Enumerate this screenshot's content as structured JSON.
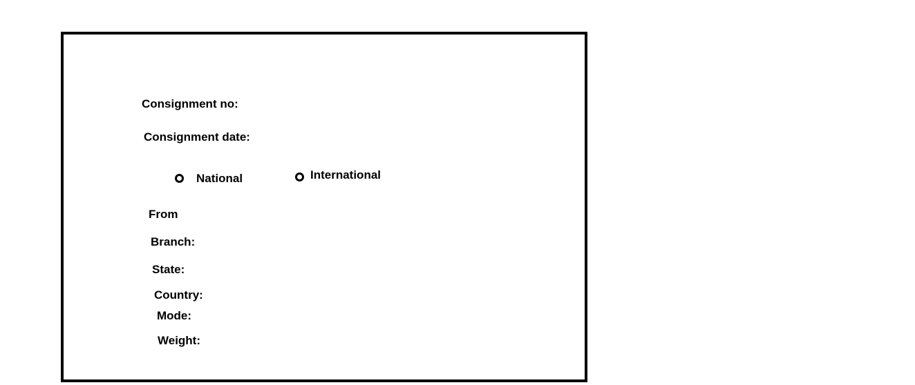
{
  "form": {
    "consignment_no_label": "Consignment no:",
    "consignment_date_label": "Consignment date:",
    "type_options": [
      {
        "label": "National"
      },
      {
        "label": "International"
      }
    ],
    "from_label": "From",
    "branch_label": "Branch:",
    "state_label": "State:",
    "country_label": "Country:",
    "mode_label": "Mode:",
    "weight_label": "Weight:"
  }
}
